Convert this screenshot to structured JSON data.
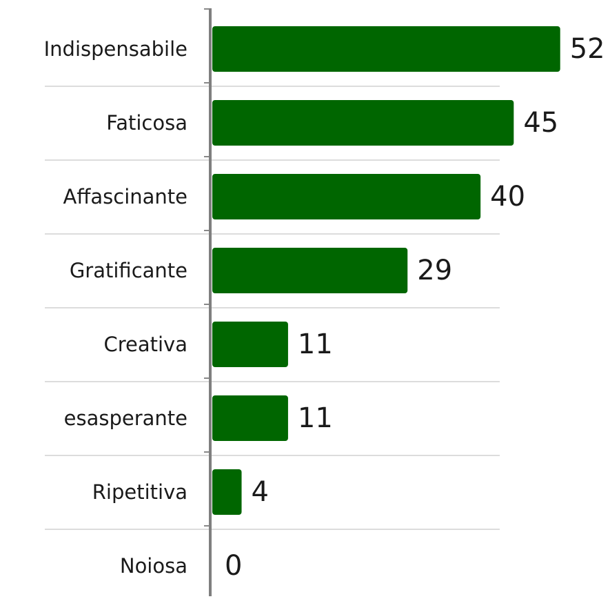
{
  "chart_data": {
    "type": "bar",
    "orientation": "horizontal",
    "categories": [
      "Indispensabile",
      "Faticosa",
      "Affascinante",
      "Gratificante",
      "Creativa",
      "esasperante",
      "Ripetitiva",
      "Noiosa"
    ],
    "values": [
      52,
      45,
      40,
      29,
      11,
      11,
      4,
      0
    ],
    "color": "#006600",
    "xlim": [
      0,
      54
    ]
  }
}
